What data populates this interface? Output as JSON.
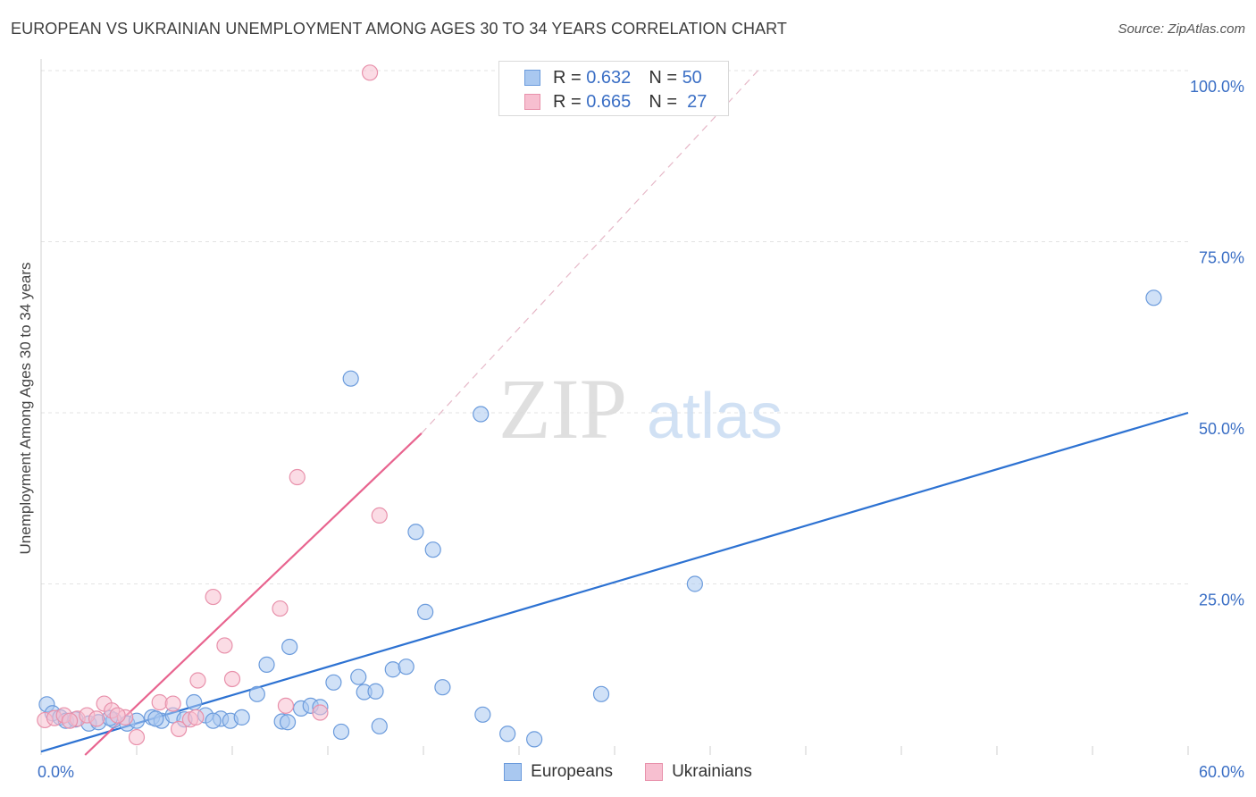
{
  "header": {
    "title": "EUROPEAN VS UKRAINIAN UNEMPLOYMENT AMONG AGES 30 TO 34 YEARS CORRELATION CHART",
    "source": "Source: ZipAtlas.com"
  },
  "watermark": {
    "zip": "ZIP",
    "atlas": "atlas"
  },
  "legend_top": [
    {
      "r_label": "R =",
      "r_value": "0.632",
      "n_label": "N =",
      "n_value": "50"
    },
    {
      "r_label": "R =",
      "r_value": "0.665",
      "n_label": "N =",
      "n_value": "27"
    }
  ],
  "colors": {
    "europeans_fill": "#a9c8f0",
    "europeans_stroke": "#6b9bdc",
    "europeans_line": "#2d72d2",
    "ukrainians_fill": "#f7bfd0",
    "ukrainians_stroke": "#e891ab",
    "ukrainians_line": "#e8648f",
    "axis_label": "#3b6fc5"
  },
  "chart_data": {
    "type": "scatter",
    "title": "EUROPEAN VS UKRAINIAN UNEMPLOYMENT AMONG AGES 30 TO 34 YEARS CORRELATION CHART",
    "xlabel": "",
    "ylabel": "Unemployment Among Ages 30 to 34 years",
    "xlim": [
      0,
      60
    ],
    "ylim": [
      0,
      100
    ],
    "x_tick_labels": [
      "0.0%",
      "60.0%"
    ],
    "y_tick_labels": [
      "25.0%",
      "50.0%",
      "75.0%",
      "100.0%"
    ],
    "y_ticks": [
      25,
      50,
      75,
      100
    ],
    "grid": true,
    "legend": [
      "Europeans",
      "Ukrainians"
    ],
    "series": [
      {
        "name": "Europeans",
        "points": [
          [
            0.3,
            7.4
          ],
          [
            0.6,
            6.1
          ],
          [
            1.0,
            5.5
          ],
          [
            1.3,
            5.0
          ],
          [
            1.8,
            5.2
          ],
          [
            2.5,
            4.6
          ],
          [
            3.0,
            4.8
          ],
          [
            3.8,
            5.1
          ],
          [
            4.5,
            4.6
          ],
          [
            5.0,
            5.0
          ],
          [
            5.8,
            5.5
          ],
          [
            6.3,
            5.0
          ],
          [
            6.9,
            5.8
          ],
          [
            7.5,
            5.2
          ],
          [
            8.0,
            7.7
          ],
          [
            8.6,
            5.8
          ],
          [
            9.4,
            5.3
          ],
          [
            9.9,
            5.0
          ],
          [
            10.5,
            5.5
          ],
          [
            11.3,
            8.9
          ],
          [
            11.8,
            13.2
          ],
          [
            12.6,
            4.9
          ],
          [
            12.9,
            4.8
          ],
          [
            13.0,
            15.8
          ],
          [
            13.6,
            6.8
          ],
          [
            14.1,
            7.2
          ],
          [
            14.6,
            7.0
          ],
          [
            15.3,
            10.6
          ],
          [
            15.7,
            3.4
          ],
          [
            16.6,
            11.4
          ],
          [
            16.9,
            9.2
          ],
          [
            17.5,
            9.3
          ],
          [
            17.7,
            4.2
          ],
          [
            18.4,
            12.5
          ],
          [
            19.1,
            12.9
          ],
          [
            19.6,
            32.6
          ],
          [
            20.1,
            20.9
          ],
          [
            20.5,
            30.0
          ],
          [
            21.0,
            9.9
          ],
          [
            16.2,
            55.0
          ],
          [
            23.0,
            49.8
          ],
          [
            23.1,
            5.9
          ],
          [
            24.4,
            3.1
          ],
          [
            25.8,
            2.3
          ],
          [
            29.3,
            8.9
          ],
          [
            34.2,
            25.0
          ],
          [
            58.2,
            66.8
          ],
          [
            3.6,
            5.4
          ],
          [
            9.0,
            5.0
          ],
          [
            6.0,
            5.3
          ]
        ],
        "trendline": {
          "x": [
            0,
            60
          ],
          "y": [
            0.5,
            50.0
          ]
        }
      },
      {
        "name": "Ukrainians",
        "points": [
          [
            0.2,
            5.1
          ],
          [
            0.7,
            5.4
          ],
          [
            1.2,
            5.8
          ],
          [
            1.9,
            5.3
          ],
          [
            2.4,
            5.8
          ],
          [
            3.3,
            7.5
          ],
          [
            3.7,
            6.5
          ],
          [
            4.4,
            5.5
          ],
          [
            5.0,
            2.6
          ],
          [
            6.2,
            7.7
          ],
          [
            6.9,
            7.5
          ],
          [
            7.2,
            3.8
          ],
          [
            7.8,
            5.2
          ],
          [
            8.1,
            5.5
          ],
          [
            8.2,
            10.9
          ],
          [
            9.0,
            23.1
          ],
          [
            9.6,
            16.0
          ],
          [
            10.0,
            11.1
          ],
          [
            12.5,
            21.4
          ],
          [
            12.8,
            7.2
          ],
          [
            13.4,
            40.6
          ],
          [
            14.6,
            6.2
          ],
          [
            17.2,
            99.7
          ],
          [
            17.7,
            35.0
          ],
          [
            1.5,
            5.0
          ],
          [
            4.0,
            5.8
          ],
          [
            2.9,
            5.3
          ]
        ],
        "trendline": {
          "x": [
            2.3,
            19.9
          ],
          "y": [
            0.0,
            47.0
          ]
        },
        "trendline_extension": {
          "x": [
            19.9,
            37.5
          ],
          "y": [
            47.0,
            100.0
          ]
        }
      }
    ]
  },
  "legend_bottom": [
    {
      "label": "Europeans"
    },
    {
      "label": "Ukrainians"
    }
  ]
}
